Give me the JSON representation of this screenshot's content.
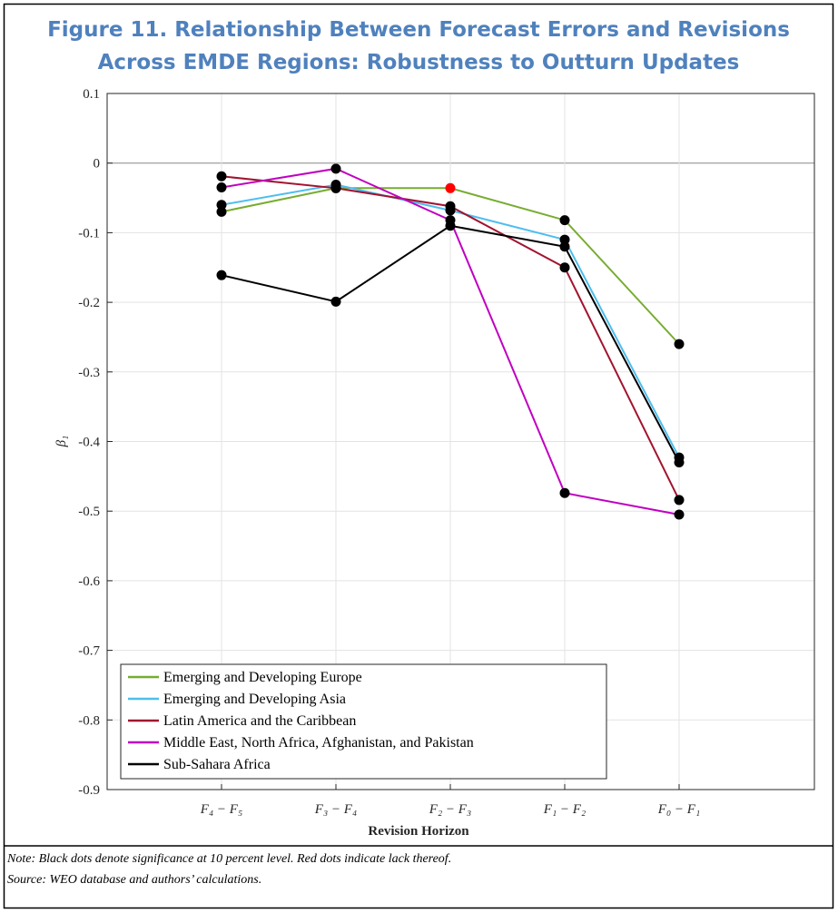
{
  "chart_data": {
    "type": "line",
    "title": [
      "Figure 11. Relationship Between Forecast Errors and Revisions",
      "Across EMDE Regions: Robustness to Outturn Updates"
    ],
    "xlabel": "Revision Horizon",
    "ylabel": "β₁",
    "categories": [
      "F₄ − F₅",
      "F₃ − F₄",
      "F₂ − F₃",
      "F₁ − F₂",
      "F₀ − F₁"
    ],
    "ylim": [
      -0.9,
      0.1
    ],
    "yticks": [
      0.1,
      0,
      -0.1,
      -0.2,
      -0.3,
      -0.4,
      -0.5,
      -0.6,
      -0.7,
      -0.8,
      -0.9
    ],
    "grid": true,
    "legend": "lower-left",
    "series": [
      {
        "name": "Emerging and Developing Europe",
        "color": "#77ac30",
        "values": [
          -0.07,
          -0.036,
          -0.036,
          -0.082,
          -0.26
        ],
        "point_colors": [
          "#000000",
          "#000000",
          "#ff0000",
          "#000000",
          "#000000"
        ]
      },
      {
        "name": "Emerging and Developing Asia",
        "color": "#4dbeee",
        "values": [
          -0.06,
          -0.031,
          -0.068,
          -0.11,
          -0.423
        ],
        "point_colors": [
          "#000000",
          "#000000",
          "#000000",
          "#000000",
          "#000000"
        ]
      },
      {
        "name": "Latin America and the Caribbean",
        "color": "#a2142f",
        "values": [
          -0.019,
          -0.036,
          -0.062,
          -0.15,
          -0.484
        ],
        "point_colors": [
          "#000000",
          "#000000",
          "#000000",
          "#000000",
          "#000000"
        ]
      },
      {
        "name": "Middle East, North Africa, Afghanistan, and Pakistan",
        "color": "#c000c0",
        "values": [
          -0.035,
          -0.008,
          -0.082,
          -0.474,
          -0.505
        ],
        "point_colors": [
          "#000000",
          "#000000",
          "#000000",
          "#000000",
          "#000000"
        ]
      },
      {
        "name": "Sub-Sahara Africa",
        "color": "#000000",
        "values": [
          -0.161,
          -0.199,
          -0.09,
          -0.12,
          -0.43
        ],
        "point_colors": [
          "#000000",
          "#000000",
          "#000000",
          "#000000",
          "#000000"
        ]
      }
    ],
    "notes": [
      "Note: Black dots denote significance at 10 percent level. Red dots indicate lack thereof.",
      "Source: WEO database and authors’ calculations."
    ]
  }
}
